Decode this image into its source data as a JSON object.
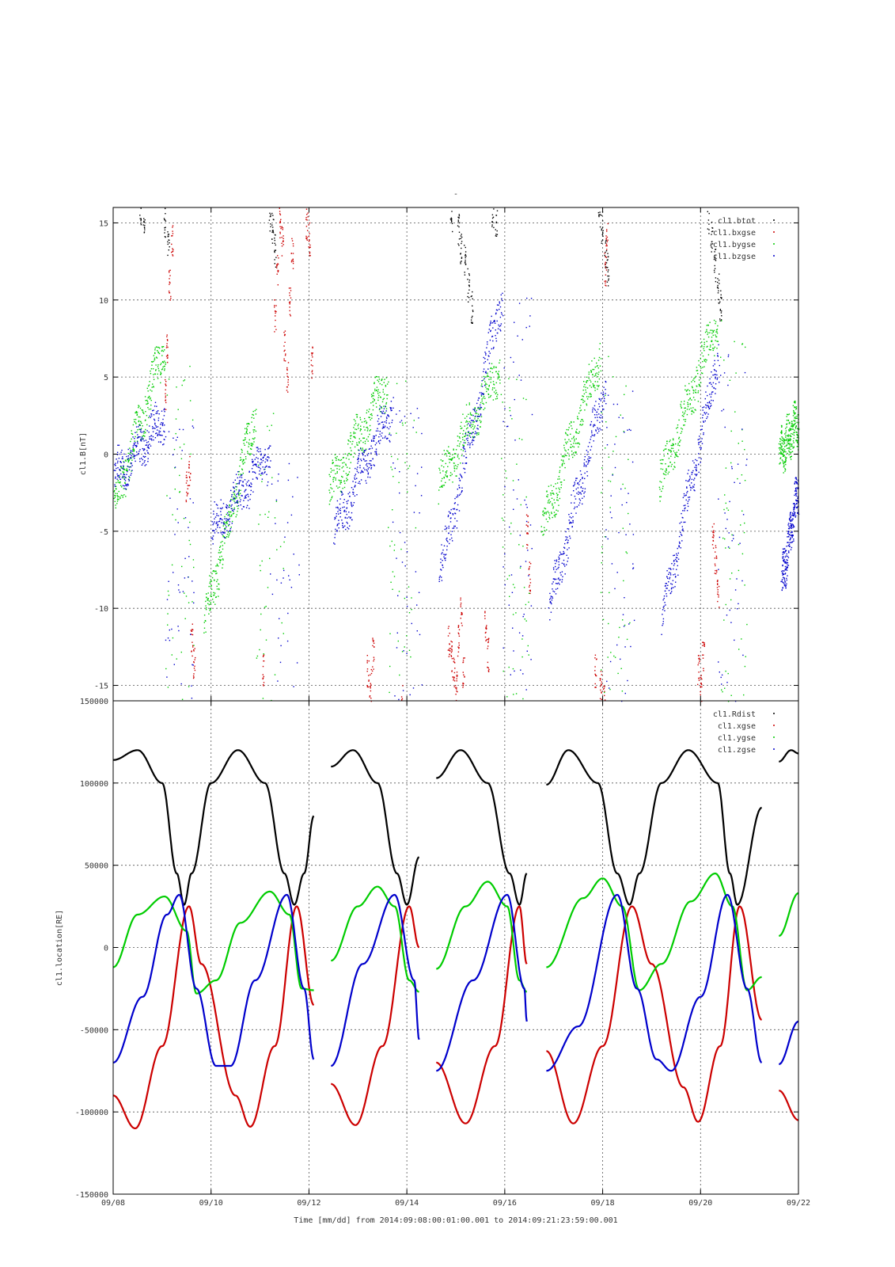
{
  "page": {
    "top_title": "-",
    "time_label": "Time [mm/dd]  from 2014:09:08:00:01:00.001  to  2014:09:21:23:59:00.001",
    "x_tick_labels": [
      "09/08",
      "09/10",
      "09/12",
      "09/14",
      "09/16",
      "09/18",
      "09/20",
      "09/22"
    ]
  },
  "chart_data": [
    {
      "type": "scatter",
      "title": "",
      "ylabel": "cl1.B[nT]",
      "xlabel": "",
      "x_unit": "days since 2014-09-08",
      "xlim": [
        0,
        14
      ],
      "ylim": [
        -16,
        16
      ],
      "yticks": [
        -15,
        -10,
        -5,
        0,
        5,
        10,
        15
      ],
      "grid": true,
      "legend_position": "top-right",
      "legend": [
        "cl1.btot",
        "cl1.bxgse",
        "cl1.bygse",
        "cl1.bzgse"
      ],
      "series": [
        {
          "name": "cl1.btot",
          "color": "#000000",
          "points": [
            [
              0.55,
              15.6
            ],
            [
              0.62,
              15.3
            ],
            [
              1.05,
              15.2
            ],
            [
              1.12,
              13.5
            ],
            [
              3.2,
              15.6
            ],
            [
              3.25,
              14.8
            ],
            [
              3.3,
              13.2
            ],
            [
              6.9,
              15.5
            ],
            [
              7.05,
              14.5
            ],
            [
              7.1,
              13.4
            ],
            [
              7.18,
              12.5
            ],
            [
              7.25,
              11.0
            ],
            [
              7.32,
              9.5
            ],
            [
              7.75,
              15.6
            ],
            [
              7.82,
              15.2
            ],
            [
              9.92,
              15.6
            ],
            [
              9.98,
              14.8
            ],
            [
              10.05,
              13.2
            ],
            [
              10.1,
              12.0
            ],
            [
              12.15,
              15.4
            ],
            [
              12.22,
              14.0
            ],
            [
              12.28,
              12.3
            ],
            [
              12.35,
              10.8
            ],
            [
              12.4,
              9.6
            ]
          ]
        },
        {
          "name": "cl1.bxgse",
          "color": "#cc0000",
          "points": [
            [
              1.05,
              4
            ],
            [
              1.1,
              7
            ],
            [
              1.15,
              11
            ],
            [
              1.2,
              14
            ],
            [
              1.5,
              -2
            ],
            [
              1.55,
              -1
            ],
            [
              1.6,
              -12
            ],
            [
              1.65,
              -13.5
            ],
            [
              3.05,
              -14
            ],
            [
              3.3,
              9
            ],
            [
              3.35,
              12
            ],
            [
              3.4,
              15
            ],
            [
              3.45,
              14
            ],
            [
              3.5,
              7
            ],
            [
              3.55,
              5
            ],
            [
              3.6,
              10
            ],
            [
              3.65,
              13
            ],
            [
              3.95,
              15
            ],
            [
              4,
              14
            ],
            [
              4.05,
              6
            ],
            [
              5.2,
              -14
            ],
            [
              5.25,
              -15
            ],
            [
              5.3,
              -13
            ],
            [
              5.9,
              -16
            ],
            [
              6.85,
              -12
            ],
            [
              6.9,
              -13
            ],
            [
              6.95,
              -14
            ],
            [
              7,
              -15
            ],
            [
              7.05,
              -12
            ],
            [
              7.1,
              -10
            ],
            [
              7.15,
              -14
            ],
            [
              7.6,
              -11
            ],
            [
              7.65,
              -13
            ],
            [
              8.45,
              -5
            ],
            [
              8.5,
              -8
            ],
            [
              9.85,
              -14
            ],
            [
              9.95,
              -15
            ],
            [
              10.02,
              -16
            ],
            [
              10.05,
              12
            ],
            [
              10.08,
              14
            ],
            [
              11.95,
              -14
            ],
            [
              12,
              -15
            ],
            [
              12.05,
              -13
            ],
            [
              12.25,
              -5
            ],
            [
              12.3,
              -7
            ],
            [
              12.35,
              -9
            ]
          ]
        },
        {
          "name": "cl1.bygse",
          "color": "#00cc00",
          "generator": "ramp",
          "segments": [
            {
              "x0": 0.0,
              "x1": 1.05,
              "y0": -3.5,
              "y1": 7.2
            },
            {
              "x0": 1.85,
              "x1": 2.9,
              "y0": -11,
              "y1": 2.8
            },
            {
              "x0": 4.4,
              "x1": 5.6,
              "y0": -2.5,
              "y1": 4.8
            },
            {
              "x0": 6.65,
              "x1": 7.9,
              "y0": -2,
              "y1": 5.8
            },
            {
              "x0": 8.75,
              "x1": 9.95,
              "y0": -5,
              "y1": 6.5
            },
            {
              "x0": 11.15,
              "x1": 12.35,
              "y0": -2,
              "y1": 8.8
            },
            {
              "x0": 13.6,
              "x1": 14.0,
              "y0": 0,
              "y1": 2.2
            }
          ]
        },
        {
          "name": "cl1.bzgse",
          "color": "#0000cc",
          "generator": "ramp",
          "segments": [
            {
              "x0": 0.0,
              "x1": 1.05,
              "y0": -1.5,
              "y1": 2.5
            },
            {
              "x0": 2.0,
              "x1": 3.2,
              "y0": -5,
              "y1": 0
            },
            {
              "x0": 4.5,
              "x1": 5.7,
              "y0": -5,
              "y1": 3
            },
            {
              "x0": 6.65,
              "x1": 7.95,
              "y0": -8,
              "y1": 10.5
            },
            {
              "x0": 8.9,
              "x1": 10.05,
              "y0": -10,
              "y1": 4.5
            },
            {
              "x0": 11.2,
              "x1": 12.35,
              "y0": -11,
              "y1": 6.5
            },
            {
              "x0": 13.65,
              "x1": 14.0,
              "y0": -8.5,
              "y1": -1.8
            }
          ]
        }
      ]
    },
    {
      "type": "line",
      "title": "",
      "ylabel": "cl1.location[RE]",
      "xlabel": "Time [mm/dd]  from 2014:09:08:00:01:00.001  to  2014:09:21:23:59:00.001",
      "x_unit": "days since 2014-09-08",
      "xlim": [
        0,
        14
      ],
      "ylim": [
        -150000,
        150000
      ],
      "yticks": [
        -150000,
        -100000,
        -50000,
        0,
        50000,
        100000,
        150000
      ],
      "grid": true,
      "legend_position": "top-right",
      "legend": [
        "cl1.Rdist",
        "cl1.xgse",
        "cl1.ygse",
        "cl1.zgse"
      ],
      "data_segments": [
        [
          0.0,
          4.1
        ],
        [
          4.45,
          6.25
        ],
        [
          6.6,
          8.45
        ],
        [
          8.85,
          13.25
        ],
        [
          13.6,
          14.0
        ]
      ],
      "orbit_period_days": 2.28,
      "perigee_times": [
        1.45,
        3.7,
        6.0,
        8.3,
        10.55,
        12.75
      ],
      "series": [
        {
          "name": "cl1.Rdist",
          "color": "#000000",
          "samples": [
            [
              0,
              114000
            ],
            [
              0.5,
              120000
            ],
            [
              1.0,
              100000
            ],
            [
              1.3,
              45000
            ],
            [
              1.45,
              26000
            ],
            [
              1.6,
              45000
            ],
            [
              2.0,
              100000
            ],
            [
              2.55,
              120000
            ],
            [
              3.1,
              100000
            ],
            [
              3.5,
              45000
            ],
            [
              3.7,
              26000
            ],
            [
              3.9,
              45000
            ],
            [
              4.1,
              80000
            ],
            [
              4.45,
              110000
            ],
            [
              4.9,
              120000
            ],
            [
              5.4,
              100000
            ],
            [
              5.8,
              45000
            ],
            [
              6.0,
              26000
            ],
            [
              6.25,
              55000
            ],
            [
              6.6,
              103000
            ],
            [
              7.1,
              120000
            ],
            [
              7.65,
              100000
            ],
            [
              8.1,
              45000
            ],
            [
              8.3,
              26000
            ],
            [
              8.45,
              45000
            ],
            [
              8.85,
              99000
            ],
            [
              9.3,
              120000
            ],
            [
              9.9,
              100000
            ],
            [
              10.3,
              45000
            ],
            [
              10.55,
              26000
            ],
            [
              10.75,
              45000
            ],
            [
              11.2,
              100000
            ],
            [
              11.75,
              120000
            ],
            [
              12.35,
              100000
            ],
            [
              12.6,
              45000
            ],
            [
              12.75,
              26000
            ],
            [
              13.25,
              85000
            ],
            [
              13.6,
              113000
            ],
            [
              13.85,
              120000
            ],
            [
              14,
              118000
            ]
          ]
        },
        {
          "name": "cl1.xgse",
          "color": "#cc0000",
          "samples": [
            [
              0,
              -90000
            ],
            [
              0.45,
              -110000
            ],
            [
              1.0,
              -60000
            ],
            [
              1.55,
              25000
            ],
            [
              1.8,
              -10000
            ],
            [
              2.5,
              -90000
            ],
            [
              2.8,
              -109000
            ],
            [
              3.3,
              -60000
            ],
            [
              3.75,
              25000
            ],
            [
              4.1,
              -35000
            ],
            [
              4.45,
              -83000
            ],
            [
              4.95,
              -108000
            ],
            [
              5.5,
              -60000
            ],
            [
              6.05,
              25000
            ],
            [
              6.25,
              0
            ],
            [
              6.6,
              -70000
            ],
            [
              7.2,
              -107000
            ],
            [
              7.8,
              -60000
            ],
            [
              8.3,
              25000
            ],
            [
              8.45,
              -10000
            ],
            [
              8.85,
              -63000
            ],
            [
              9.4,
              -107000
            ],
            [
              10.0,
              -60000
            ],
            [
              10.6,
              25000
            ],
            [
              11.0,
              -10000
            ],
            [
              11.65,
              -85000
            ],
            [
              11.95,
              -106000
            ],
            [
              12.4,
              -60000
            ],
            [
              12.8,
              25000
            ],
            [
              13.25,
              -44000
            ],
            [
              13.6,
              -87000
            ],
            [
              14,
              -105000
            ]
          ]
        },
        {
          "name": "cl1.ygse",
          "color": "#00cc00",
          "samples": [
            [
              0,
              -12000
            ],
            [
              0.5,
              20000
            ],
            [
              1.05,
              31000
            ],
            [
              1.5,
              10000
            ],
            [
              1.7,
              -28000
            ],
            [
              2.1,
              -20000
            ],
            [
              2.6,
              15000
            ],
            [
              3.2,
              34000
            ],
            [
              3.6,
              20000
            ],
            [
              3.85,
              -25000
            ],
            [
              4.1,
              -26000
            ],
            [
              4.45,
              -8000
            ],
            [
              5.0,
              25000
            ],
            [
              5.4,
              37000
            ],
            [
              5.75,
              25000
            ],
            [
              6.05,
              -20000
            ],
            [
              6.25,
              -27000
            ],
            [
              6.6,
              -13000
            ],
            [
              7.2,
              25000
            ],
            [
              7.65,
              40000
            ],
            [
              8.05,
              25000
            ],
            [
              8.3,
              -20000
            ],
            [
              8.45,
              -27000
            ],
            [
              8.85,
              -12000
            ],
            [
              9.6,
              30000
            ],
            [
              10.0,
              42000
            ],
            [
              10.4,
              25000
            ],
            [
              10.75,
              -26000
            ],
            [
              11.2,
              -10000
            ],
            [
              11.8,
              28000
            ],
            [
              12.3,
              45000
            ],
            [
              12.65,
              25000
            ],
            [
              12.95,
              -26000
            ],
            [
              13.25,
              -18000
            ],
            [
              13.6,
              7000
            ],
            [
              14,
              33000
            ]
          ]
        },
        {
          "name": "cl1.zgse",
          "color": "#0000cc",
          "samples": [
            [
              0,
              -70000
            ],
            [
              0.6,
              -30000
            ],
            [
              1.1,
              20000
            ],
            [
              1.35,
              32000
            ],
            [
              1.7,
              -25000
            ],
            [
              2.1,
              -72000
            ],
            [
              2.4,
              -72000
            ],
            [
              2.9,
              -20000
            ],
            [
              3.55,
              32000
            ],
            [
              3.9,
              -25000
            ],
            [
              4.1,
              -68000
            ],
            [
              4.45,
              -72000
            ],
            [
              5.1,
              -10000
            ],
            [
              5.75,
              32000
            ],
            [
              6.15,
              -20000
            ],
            [
              6.25,
              -56000
            ],
            [
              6.6,
              -75000
            ],
            [
              7.35,
              -20000
            ],
            [
              8.05,
              32000
            ],
            [
              8.4,
              -25000
            ],
            [
              8.45,
              -45000
            ],
            [
              8.85,
              -75000
            ],
            [
              9.5,
              -48000
            ],
            [
              10.3,
              32000
            ],
            [
              10.7,
              -25000
            ],
            [
              11.1,
              -68000
            ],
            [
              11.4,
              -75000
            ],
            [
              12.0,
              -30000
            ],
            [
              12.55,
              32000
            ],
            [
              12.95,
              -25000
            ],
            [
              13.25,
              -70000
            ],
            [
              13.6,
              -71000
            ],
            [
              14,
              -45000
            ]
          ]
        }
      ]
    }
  ]
}
